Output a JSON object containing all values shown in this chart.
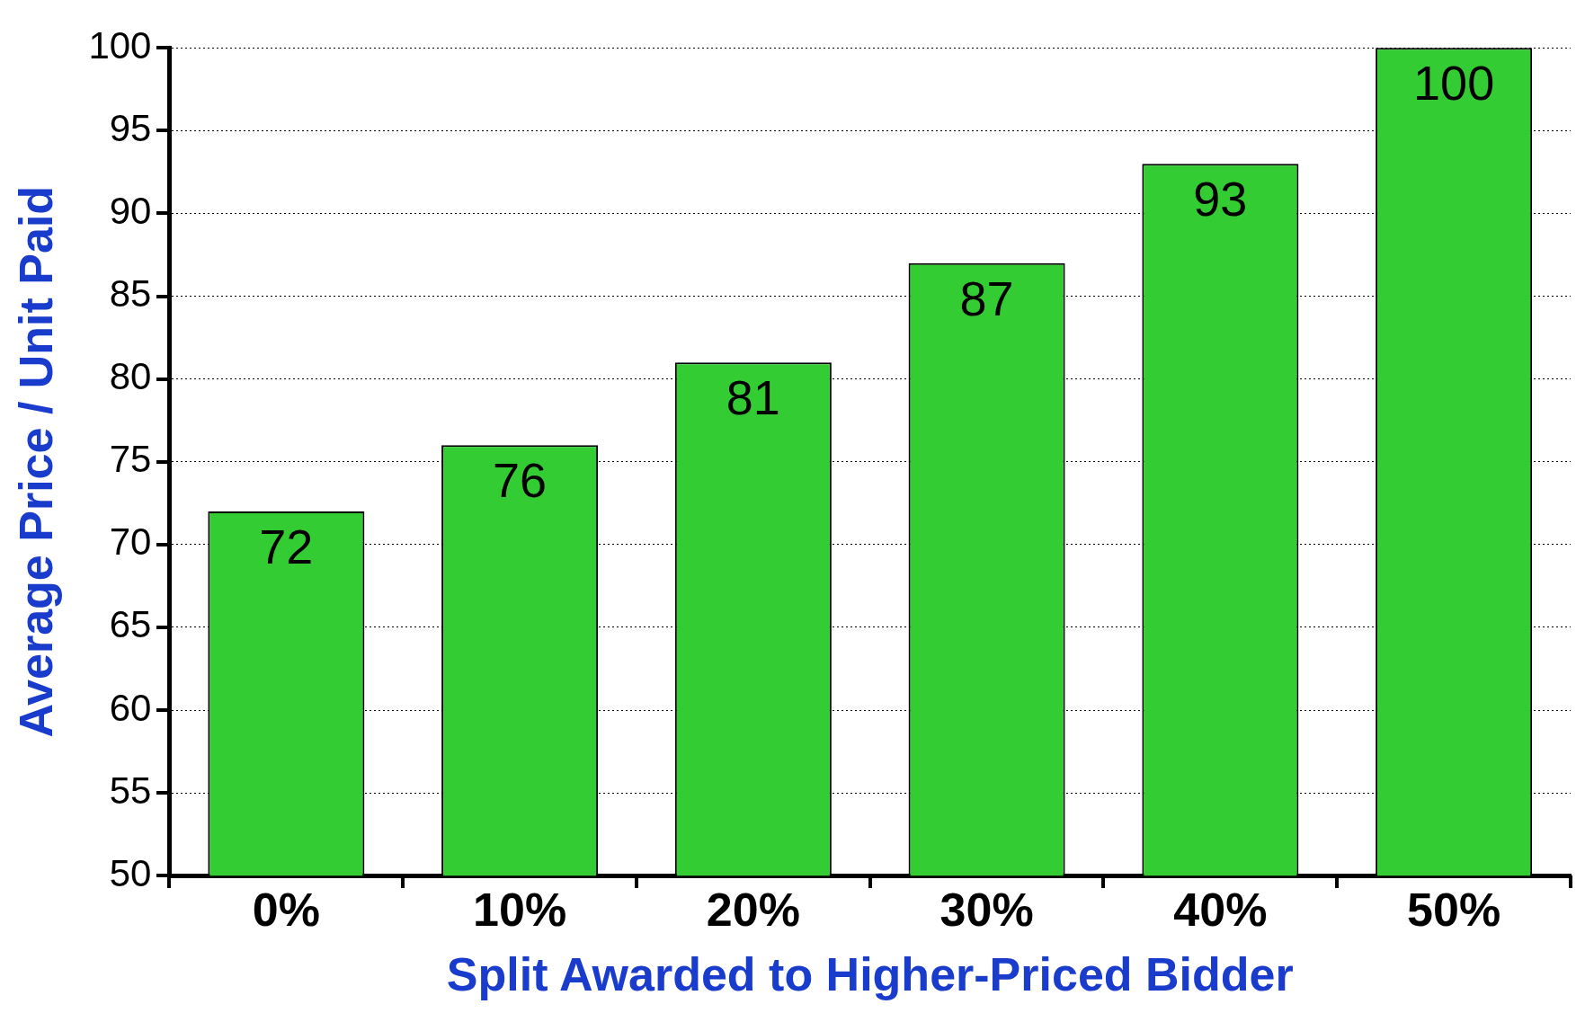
{
  "chart_data": {
    "type": "bar",
    "xlabel": "Split Awarded to Higher-Priced Bidder",
    "ylabel": "Average Price / Unit Paid",
    "categories": [
      "0%",
      "10%",
      "20%",
      "30%",
      "40%",
      "50%"
    ],
    "values": [
      72,
      76,
      81,
      87,
      93,
      100
    ],
    "color": "#33cc33",
    "ylim": [
      50,
      100
    ],
    "yticks": [
      50,
      55,
      60,
      65,
      70,
      75,
      80,
      85,
      90,
      95,
      100
    ],
    "grid": "y",
    "data_labels": true
  }
}
